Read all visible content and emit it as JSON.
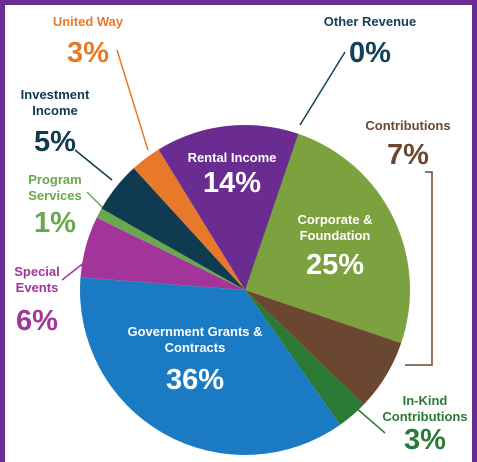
{
  "chart_data": {
    "type": "pie",
    "categories": [
      "Other Revenue",
      "Corporate & Foundation",
      "Contributions",
      "In-Kind Contributions",
      "Government Grants & Contracts",
      "Special Events",
      "Program Services",
      "Investment Income",
      "United Way",
      "Rental Income"
    ],
    "values": [
      0,
      25,
      7,
      3,
      36,
      6,
      1,
      5,
      3,
      14
    ],
    "value_labels": [
      "0%",
      "25%",
      "7%",
      "3%",
      "36%",
      "6%",
      "1%",
      "5%",
      "3%",
      "14%"
    ],
    "colors": [
      "#13405a",
      "#7ba23f",
      "#6b4630",
      "#2a7a35",
      "#1a7bc4",
      "#a3359a",
      "#6aa84f",
      "#0f3a4f",
      "#e8792a",
      "#6a2c91"
    ]
  }
}
